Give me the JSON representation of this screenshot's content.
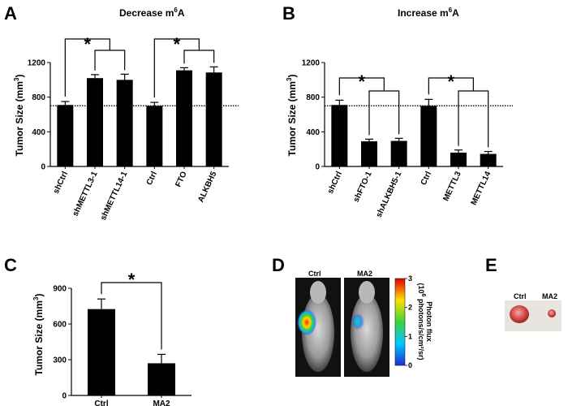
{
  "panels": {
    "A": "A",
    "B": "B",
    "C": "C",
    "D": "D",
    "E": "E"
  },
  "chart_data": [
    {
      "id": "A",
      "type": "bar",
      "title_main": "Decrease m",
      "title_sup": "6",
      "title_end": "A",
      "ylabel_main": "Tumor Size (mm",
      "ylabel_sup": "3",
      "ylabel_end": ")",
      "categories": [
        "shCtrl",
        "shMETTL3-1",
        "shMETTL14-1",
        "Ctrl",
        "FTO",
        "ALKBH5"
      ],
      "values": [
        710,
        1020,
        1000,
        700,
        1110,
        1085
      ],
      "errors": [
        40,
        40,
        65,
        40,
        30,
        65
      ],
      "ylim": [
        0,
        1200
      ],
      "yticks": [
        0,
        400,
        800,
        1200
      ],
      "ytick_labels": [
        "0",
        "400",
        "800",
        "1200"
      ],
      "reference_line": 700,
      "significance": [
        "*",
        "*"
      ]
    },
    {
      "id": "B",
      "type": "bar",
      "title_main": "Increase m",
      "title_sup": "6",
      "title_end": "A",
      "ylabel_main": "Tumor Size (mm",
      "ylabel_sup": "3",
      "ylabel_end": ")",
      "categories": [
        "shCtrl",
        "shFTO-1",
        "shALKBH5-1",
        "Ctrl",
        "METTL3",
        "METTL14"
      ],
      "values": [
        710,
        290,
        295,
        700,
        160,
        145
      ],
      "errors": [
        55,
        25,
        30,
        75,
        30,
        28
      ],
      "ylim": [
        0,
        1200
      ],
      "yticks": [
        0,
        400,
        800,
        1200
      ],
      "ytick_labels": [
        "0",
        "400",
        "800",
        "1200"
      ],
      "reference_line": 700,
      "significance": [
        "*",
        "*"
      ]
    },
    {
      "id": "C",
      "type": "bar",
      "ylabel_main": "Tumor Size (mm",
      "ylabel_sup": "3",
      "ylabel_end": ")",
      "categories": [
        "Ctrl",
        "MA2"
      ],
      "values": [
        725,
        270
      ],
      "errors": [
        85,
        75
      ],
      "ylim": [
        0,
        900
      ],
      "yticks": [
        0,
        300,
        600,
        900
      ],
      "ytick_labels": [
        "0",
        "300",
        "600",
        "900"
      ],
      "significance": [
        "*"
      ]
    }
  ],
  "panelD": {
    "labels": [
      "Ctrl",
      "MA2"
    ],
    "colorbar_title_main": "Photon flux",
    "colorbar_title_sub": "(10",
    "colorbar_title_sup": "6",
    "colorbar_title_end": " photons/s/cm²/sr)",
    "colorbar_ticks": [
      "3",
      "2",
      "1",
      "0"
    ],
    "colorbar_values": [
      3,
      2,
      1,
      0
    ],
    "colorbar_range": [
      0,
      3
    ]
  },
  "panelE": {
    "labels": [
      "Ctrl",
      "MA2"
    ]
  }
}
